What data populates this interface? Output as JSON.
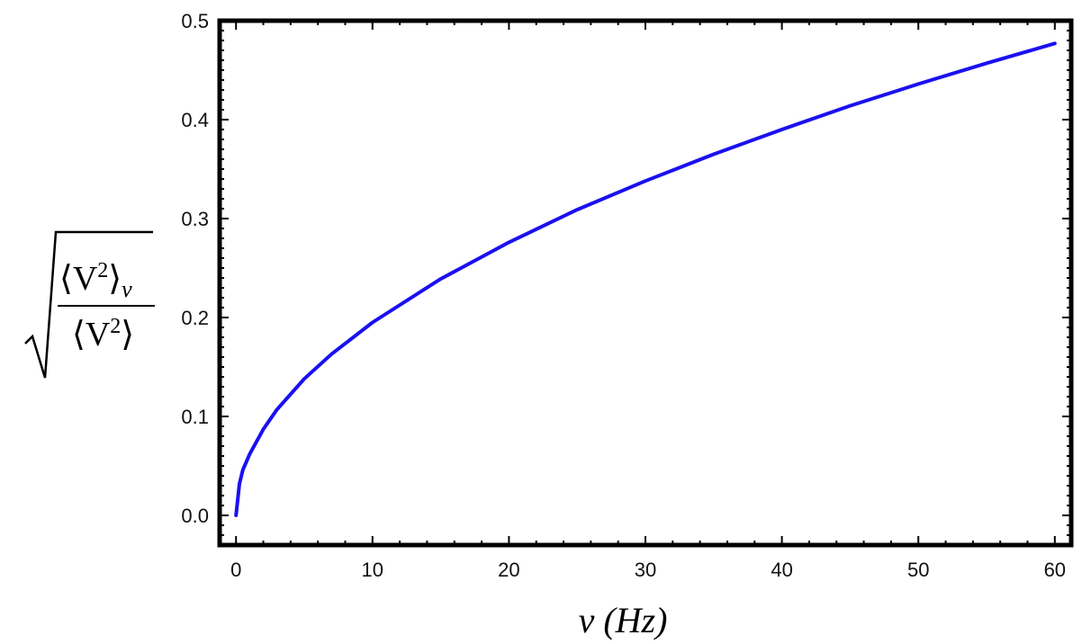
{
  "chart_data": {
    "type": "line",
    "xlabel": "ν (Hz)",
    "ylabel": "√(⟨V²⟩ν / ⟨V²⟩)",
    "ylabel_parts": {
      "numerator": "⟨V",
      "numerator_sup": "2",
      "numerator_close": "⟩",
      "numerator_sub": "ν",
      "denominator": "⟨V",
      "denominator_sup": "2",
      "denominator_close": "⟩"
    },
    "xlabel_parts": {
      "var": "ν",
      "unit": "(Hz)"
    },
    "xlim": [
      -1.2,
      61.2
    ],
    "ylim": [
      -0.03,
      0.5
    ],
    "x_ticks": [
      0,
      10,
      20,
      30,
      40,
      50,
      60
    ],
    "x_tick_labels": [
      "0",
      "10",
      "20",
      "30",
      "40",
      "50",
      "60"
    ],
    "y_ticks": [
      0.0,
      0.1,
      0.2,
      0.3,
      0.4,
      0.5
    ],
    "y_tick_labels": [
      "0.0",
      "0.1",
      "0.2",
      "0.3",
      "0.4",
      "0.5"
    ],
    "grid": false,
    "series": [
      {
        "color": "#1a10f0",
        "x": [
          0,
          0.25,
          0.5,
          1,
          2,
          3,
          5,
          7,
          10,
          15,
          20,
          25,
          30,
          35,
          40,
          45,
          50,
          55,
          60
        ],
        "y": [
          0.0,
          0.032,
          0.046,
          0.062,
          0.087,
          0.107,
          0.138,
          0.163,
          0.195,
          0.239,
          0.276,
          0.309,
          0.338,
          0.365,
          0.39,
          0.414,
          0.436,
          0.457,
          0.477
        ]
      }
    ]
  }
}
